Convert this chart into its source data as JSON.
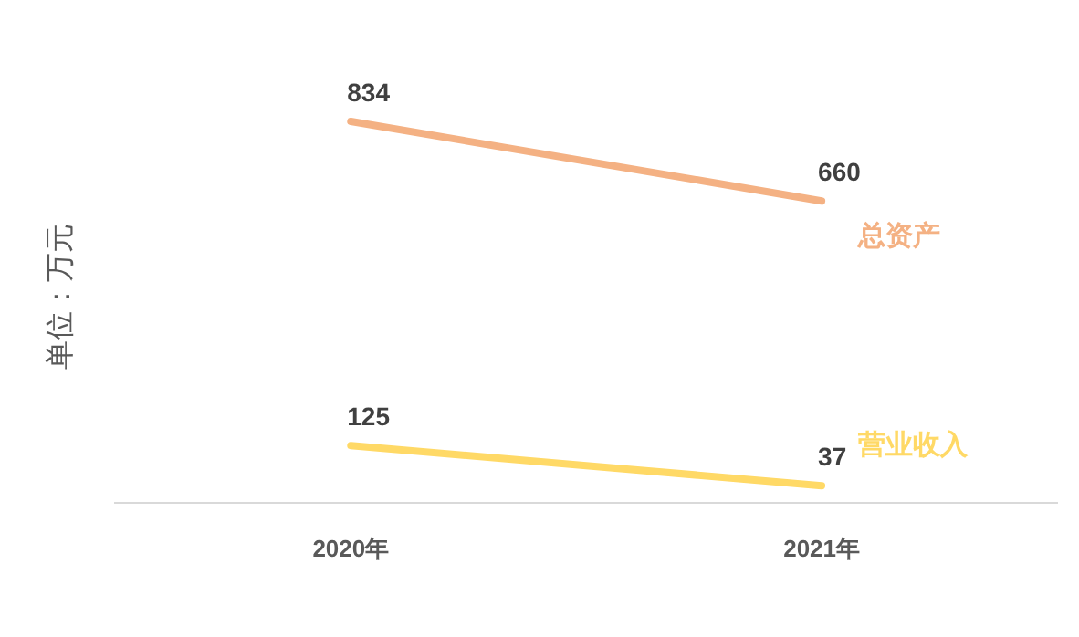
{
  "chart_data": {
    "type": "line",
    "ylabel": "单位：万元",
    "categories": [
      "2020年",
      "2021年"
    ],
    "series": [
      {
        "name": "总资产",
        "color": "#f4b183",
        "values": [
          834,
          660
        ]
      },
      {
        "name": "营业收入",
        "color": "#ffd966",
        "values": [
          125,
          37
        ]
      }
    ],
    "tick_labels": "x",
    "data_labels": true,
    "legend": false,
    "grid": false,
    "marker": "none"
  }
}
